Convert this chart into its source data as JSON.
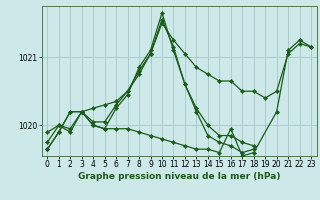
{
  "title": "Graphe pression niveau de la mer (hPa)",
  "background_color": "#cce8e8",
  "grid_color": "#aacccc",
  "line_color": "#1a5c1a",
  "yticks": [
    1020,
    1021
  ],
  "ylim": [
    1019.55,
    1021.75
  ],
  "xlim": [
    -0.5,
    23.5
  ],
  "xticks": [
    0,
    1,
    2,
    3,
    4,
    5,
    6,
    7,
    8,
    9,
    10,
    11,
    12,
    13,
    14,
    15,
    16,
    17,
    18,
    19,
    20,
    21,
    22,
    23
  ],
  "series": [
    {
      "x": [
        0,
        1,
        2,
        3,
        4,
        5,
        6,
        7,
        8,
        9,
        10,
        11,
        12,
        13,
        14,
        15,
        16,
        17,
        18,
        19,
        20,
        21,
        22,
        23
      ],
      "y": [
        1019.9,
        1020.0,
        1019.95,
        1020.2,
        1020.05,
        1020.05,
        1020.3,
        1020.5,
        1020.75,
        1021.05,
        1021.5,
        1021.25,
        1021.05,
        1020.85,
        1020.75,
        1020.65,
        1020.65,
        1020.5,
        1020.5,
        1020.4,
        1020.5,
        1021.05,
        1021.2,
        1021.15
      ]
    },
    {
      "x": [
        0,
        1,
        2,
        3,
        4,
        5,
        6,
        7,
        8,
        9,
        10,
        11,
        12,
        13,
        14,
        15,
        16,
        17,
        18,
        19,
        20,
        21,
        22,
        23
      ],
      "y": [
        1019.75,
        1020.0,
        1019.9,
        1020.2,
        1020.0,
        1019.95,
        1020.25,
        1020.45,
        1020.85,
        1021.1,
        1021.65,
        1021.1,
        1020.6,
        1020.25,
        1020.0,
        1019.85,
        1019.85,
        1019.75,
        1019.7,
        null,
        null,
        null,
        1021.25,
        1021.15
      ]
    },
    {
      "x": [
        0,
        1,
        2,
        3,
        4,
        5,
        6,
        7,
        8,
        9,
        10,
        11,
        12,
        13,
        14,
        15,
        16,
        17,
        18
      ],
      "y": [
        1019.65,
        1019.9,
        1020.2,
        1020.2,
        1020.25,
        1020.3,
        1020.35,
        1020.5,
        1020.8,
        1021.05,
        1021.55,
        1021.15,
        1020.6,
        1020.2,
        1019.85,
        1019.75,
        1019.7,
        1019.6,
        1019.65
      ]
    },
    {
      "x": [
        0,
        1,
        2,
        3,
        4,
        5,
        6,
        7,
        8,
        9,
        10,
        11,
        12,
        13,
        14,
        15,
        16,
        17,
        18,
        20,
        21,
        22
      ],
      "y": [
        1019.65,
        1019.9,
        1020.2,
        1020.2,
        1020.0,
        1019.95,
        1019.95,
        1019.95,
        1019.9,
        1019.85,
        1019.8,
        1019.75,
        1019.7,
        1019.65,
        1019.65,
        1019.6,
        1019.95,
        1019.55,
        1019.6,
        1020.2,
        1021.1,
        1021.25
      ]
    }
  ]
}
